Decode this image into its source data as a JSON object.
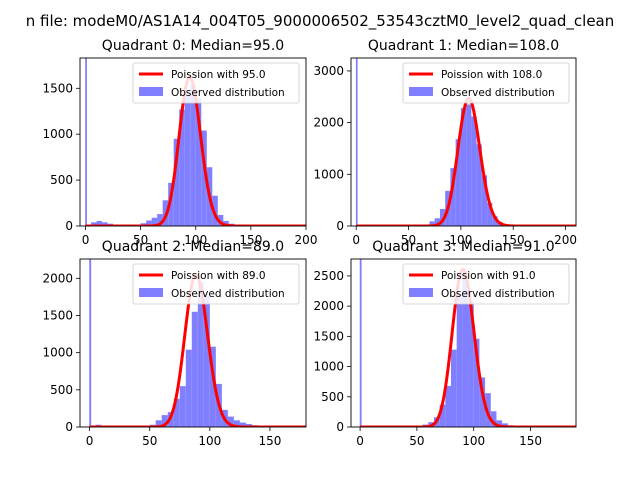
{
  "suptitle": "n file: modeM0/AS1A14_004T05_9000006502_53543cztM0_level2_quad_clean",
  "colors": {
    "hist": "#7f7fff",
    "poisson": "#ff0000"
  },
  "chart_data": [
    {
      "type": "bar",
      "title": "Quadrant 0: Median=95.0",
      "xlim": [
        -5,
        200
      ],
      "ylim": [
        0,
        1830
      ],
      "xticks": [
        0,
        50,
        100,
        150,
        200
      ],
      "yticks": [
        0,
        500,
        1000,
        1500
      ],
      "median": 95.0,
      "spike": 1830,
      "bin_width": 5,
      "bins": [
        [
          0,
          1830
        ],
        [
          5,
          40
        ],
        [
          10,
          55
        ],
        [
          15,
          40
        ],
        [
          20,
          25
        ],
        [
          25,
          15
        ],
        [
          30,
          8
        ],
        [
          35,
          5
        ],
        [
          40,
          5
        ],
        [
          45,
          10
        ],
        [
          50,
          30
        ],
        [
          55,
          60
        ],
        [
          60,
          90
        ],
        [
          65,
          130
        ],
        [
          70,
          280
        ],
        [
          75,
          470
        ],
        [
          80,
          950
        ],
        [
          85,
          1270
        ],
        [
          90,
          1440
        ],
        [
          95,
          1540
        ],
        [
          100,
          1390
        ],
        [
          105,
          1040
        ],
        [
          110,
          640
        ],
        [
          115,
          330
        ],
        [
          120,
          120
        ],
        [
          125,
          55
        ],
        [
          130,
          25
        ],
        [
          135,
          8
        ],
        [
          140,
          3
        ]
      ],
      "legend": [
        "Poission with 95.0",
        "Observed distribution"
      ]
    },
    {
      "type": "bar",
      "title": "Quadrant 1: Median=108.0",
      "xlim": [
        -5,
        210
      ],
      "ylim": [
        0,
        3250
      ],
      "xticks": [
        0,
        50,
        100,
        150,
        200
      ],
      "yticks": [
        0,
        1000,
        2000,
        3000
      ],
      "median": 108.0,
      "spike": 3250,
      "bin_width": 5,
      "bins": [
        [
          0,
          3250
        ],
        [
          65,
          30
        ],
        [
          70,
          90
        ],
        [
          75,
          150
        ],
        [
          80,
          330
        ],
        [
          85,
          680
        ],
        [
          90,
          1120
        ],
        [
          95,
          1680
        ],
        [
          100,
          2280
        ],
        [
          105,
          2350
        ],
        [
          110,
          2120
        ],
        [
          115,
          1580
        ],
        [
          120,
          980
        ],
        [
          125,
          450
        ],
        [
          130,
          190
        ],
        [
          135,
          80
        ],
        [
          140,
          30
        ]
      ],
      "legend": [
        "Poission with 108.0",
        "Observed distribution"
      ]
    },
    {
      "type": "bar",
      "title": "Quadrant 2: Median=89.0",
      "xlim": [
        -8,
        180
      ],
      "ylim": [
        0,
        2260
      ],
      "xticks": [
        0,
        50,
        100,
        150
      ],
      "yticks": [
        0,
        500,
        1000,
        1500,
        2000
      ],
      "median": 89.0,
      "spike": 2260,
      "bin_width": 5,
      "bins": [
        [
          0,
          2260
        ],
        [
          5,
          30
        ],
        [
          10,
          20
        ],
        [
          15,
          15
        ],
        [
          20,
          10
        ],
        [
          25,
          8
        ],
        [
          30,
          6
        ],
        [
          35,
          5
        ],
        [
          40,
          5
        ],
        [
          45,
          10
        ],
        [
          50,
          30
        ],
        [
          55,
          90
        ],
        [
          60,
          160
        ],
        [
          65,
          200
        ],
        [
          70,
          380
        ],
        [
          75,
          550
        ],
        [
          80,
          1040
        ],
        [
          85,
          1550
        ],
        [
          90,
          1950
        ],
        [
          95,
          1760
        ],
        [
          100,
          1080
        ],
        [
          105,
          580
        ],
        [
          110,
          230
        ],
        [
          115,
          140
        ],
        [
          120,
          90
        ],
        [
          125,
          60
        ],
        [
          130,
          40
        ],
        [
          135,
          25
        ],
        [
          140,
          15
        ],
        [
          145,
          10
        ],
        [
          150,
          5
        ]
      ],
      "legend": [
        "Poission with 89.0",
        "Observed distribution"
      ]
    },
    {
      "type": "bar",
      "title": "Quadrant 3: Median=91.0",
      "xlim": [
        -8,
        190
      ],
      "ylim": [
        0,
        2780
      ],
      "xticks": [
        0,
        50,
        100,
        150
      ],
      "yticks": [
        0,
        500,
        1000,
        1500,
        2000,
        2500
      ],
      "median": 91.0,
      "spike": 2780,
      "bin_width": 5,
      "bins": [
        [
          0,
          2780
        ],
        [
          50,
          20
        ],
        [
          55,
          40
        ],
        [
          60,
          80
        ],
        [
          65,
          160
        ],
        [
          70,
          370
        ],
        [
          75,
          680
        ],
        [
          80,
          1280
        ],
        [
          85,
          2200
        ],
        [
          90,
          2480
        ],
        [
          95,
          2080
        ],
        [
          100,
          1460
        ],
        [
          105,
          820
        ],
        [
          110,
          560
        ],
        [
          115,
          260
        ],
        [
          120,
          110
        ],
        [
          125,
          60
        ],
        [
          130,
          30
        ],
        [
          135,
          10
        ]
      ],
      "legend": [
        "Poission with 91.0",
        "Observed distribution"
      ]
    }
  ]
}
